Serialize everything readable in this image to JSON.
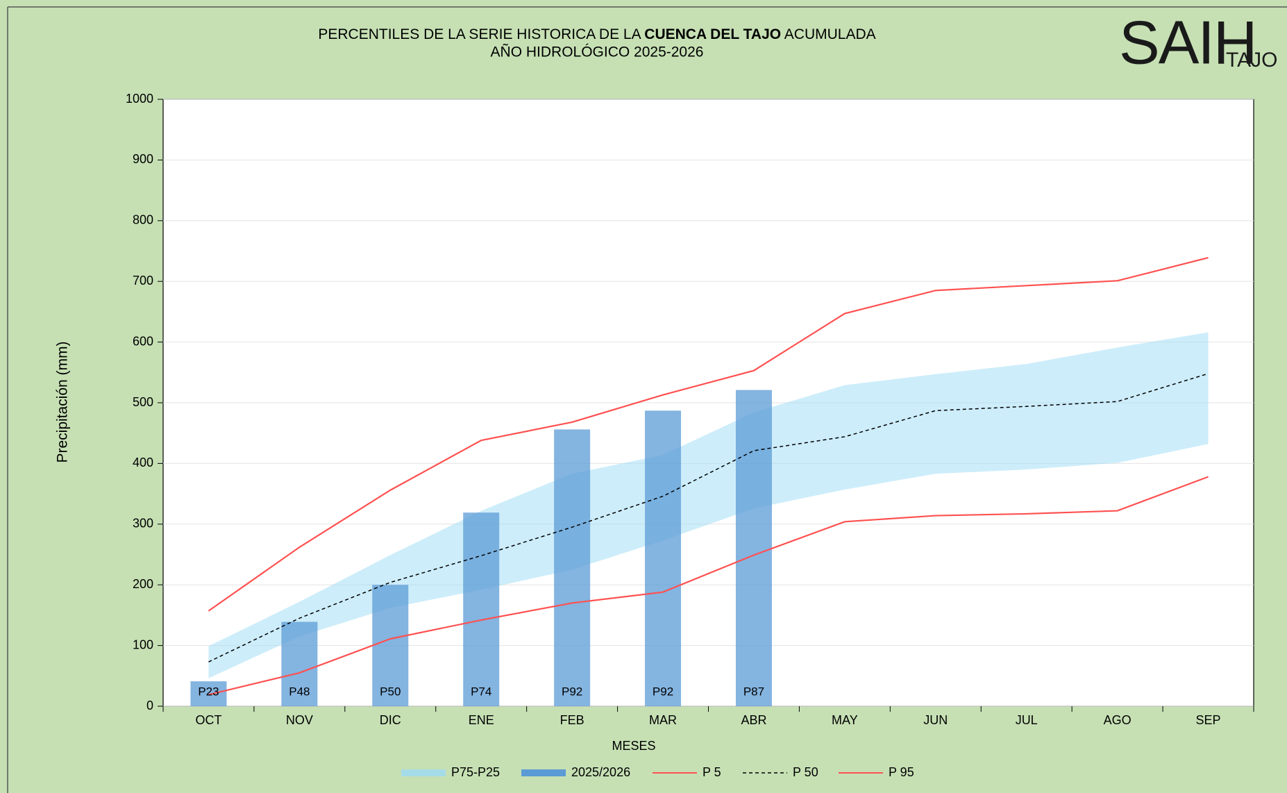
{
  "chart_data": {
    "type": "band_bar_line",
    "title": [
      "PERCENTILES DE LA SERIE HISTORICA DE LA ",
      "CUENCA DEL TAJO",
      " ACUMULADA"
    ],
    "subtitle": "AÑO HIDROLÓGICO 2025-2026",
    "logo": {
      "main": "SAIH",
      "sub": "TAJO"
    },
    "x_label": "MESES",
    "y_label": "Precipitación (mm)",
    "categories": [
      "OCT",
      "NOV",
      "DIC",
      "ENE",
      "FEB",
      "MAR",
      "ABR",
      "MAY",
      "JUN",
      "JUL",
      "AGO",
      "SEP"
    ],
    "ylim": [
      0,
      1000
    ],
    "yticks": [
      0,
      100,
      200,
      300,
      400,
      500,
      600,
      700,
      800,
      900,
      1000
    ],
    "grid": true,
    "band": {
      "name": "P75-P25",
      "color": "#9cdbf5",
      "upper": [
        99,
        172,
        249,
        322,
        383,
        414,
        484,
        529,
        547,
        564,
        591,
        616
      ],
      "lower": [
        46,
        115,
        162,
        192,
        225,
        273,
        326,
        357,
        383,
        390,
        401,
        432
      ]
    },
    "bars": {
      "name": "2025/2026",
      "color": "#5b9bd5",
      "values": [
        41,
        139,
        200,
        319,
        456,
        487,
        521,
        null,
        null,
        null,
        null,
        null
      ],
      "percentile_labels": [
        "P23",
        "P48",
        "P50",
        "P74",
        "P92",
        "P92",
        "P87",
        null,
        null,
        null,
        null,
        null
      ]
    },
    "series": [
      {
        "name": "P 5",
        "color": "#ff5050",
        "dashed": false,
        "values": [
          19,
          55,
          111,
          142,
          170,
          188,
          249,
          304,
          314,
          317,
          322,
          378
        ]
      },
      {
        "name": "P 50",
        "color": "#000000",
        "dashed": true,
        "values": [
          73,
          145,
          204,
          248,
          295,
          346,
          421,
          444,
          487,
          494,
          502,
          548
        ]
      },
      {
        "name": "P 95",
        "color": "#ff5050",
        "dashed": false,
        "values": [
          157,
          262,
          356,
          438,
          468,
          513,
          553,
          647,
          685,
          693,
          701,
          739
        ]
      }
    ]
  }
}
